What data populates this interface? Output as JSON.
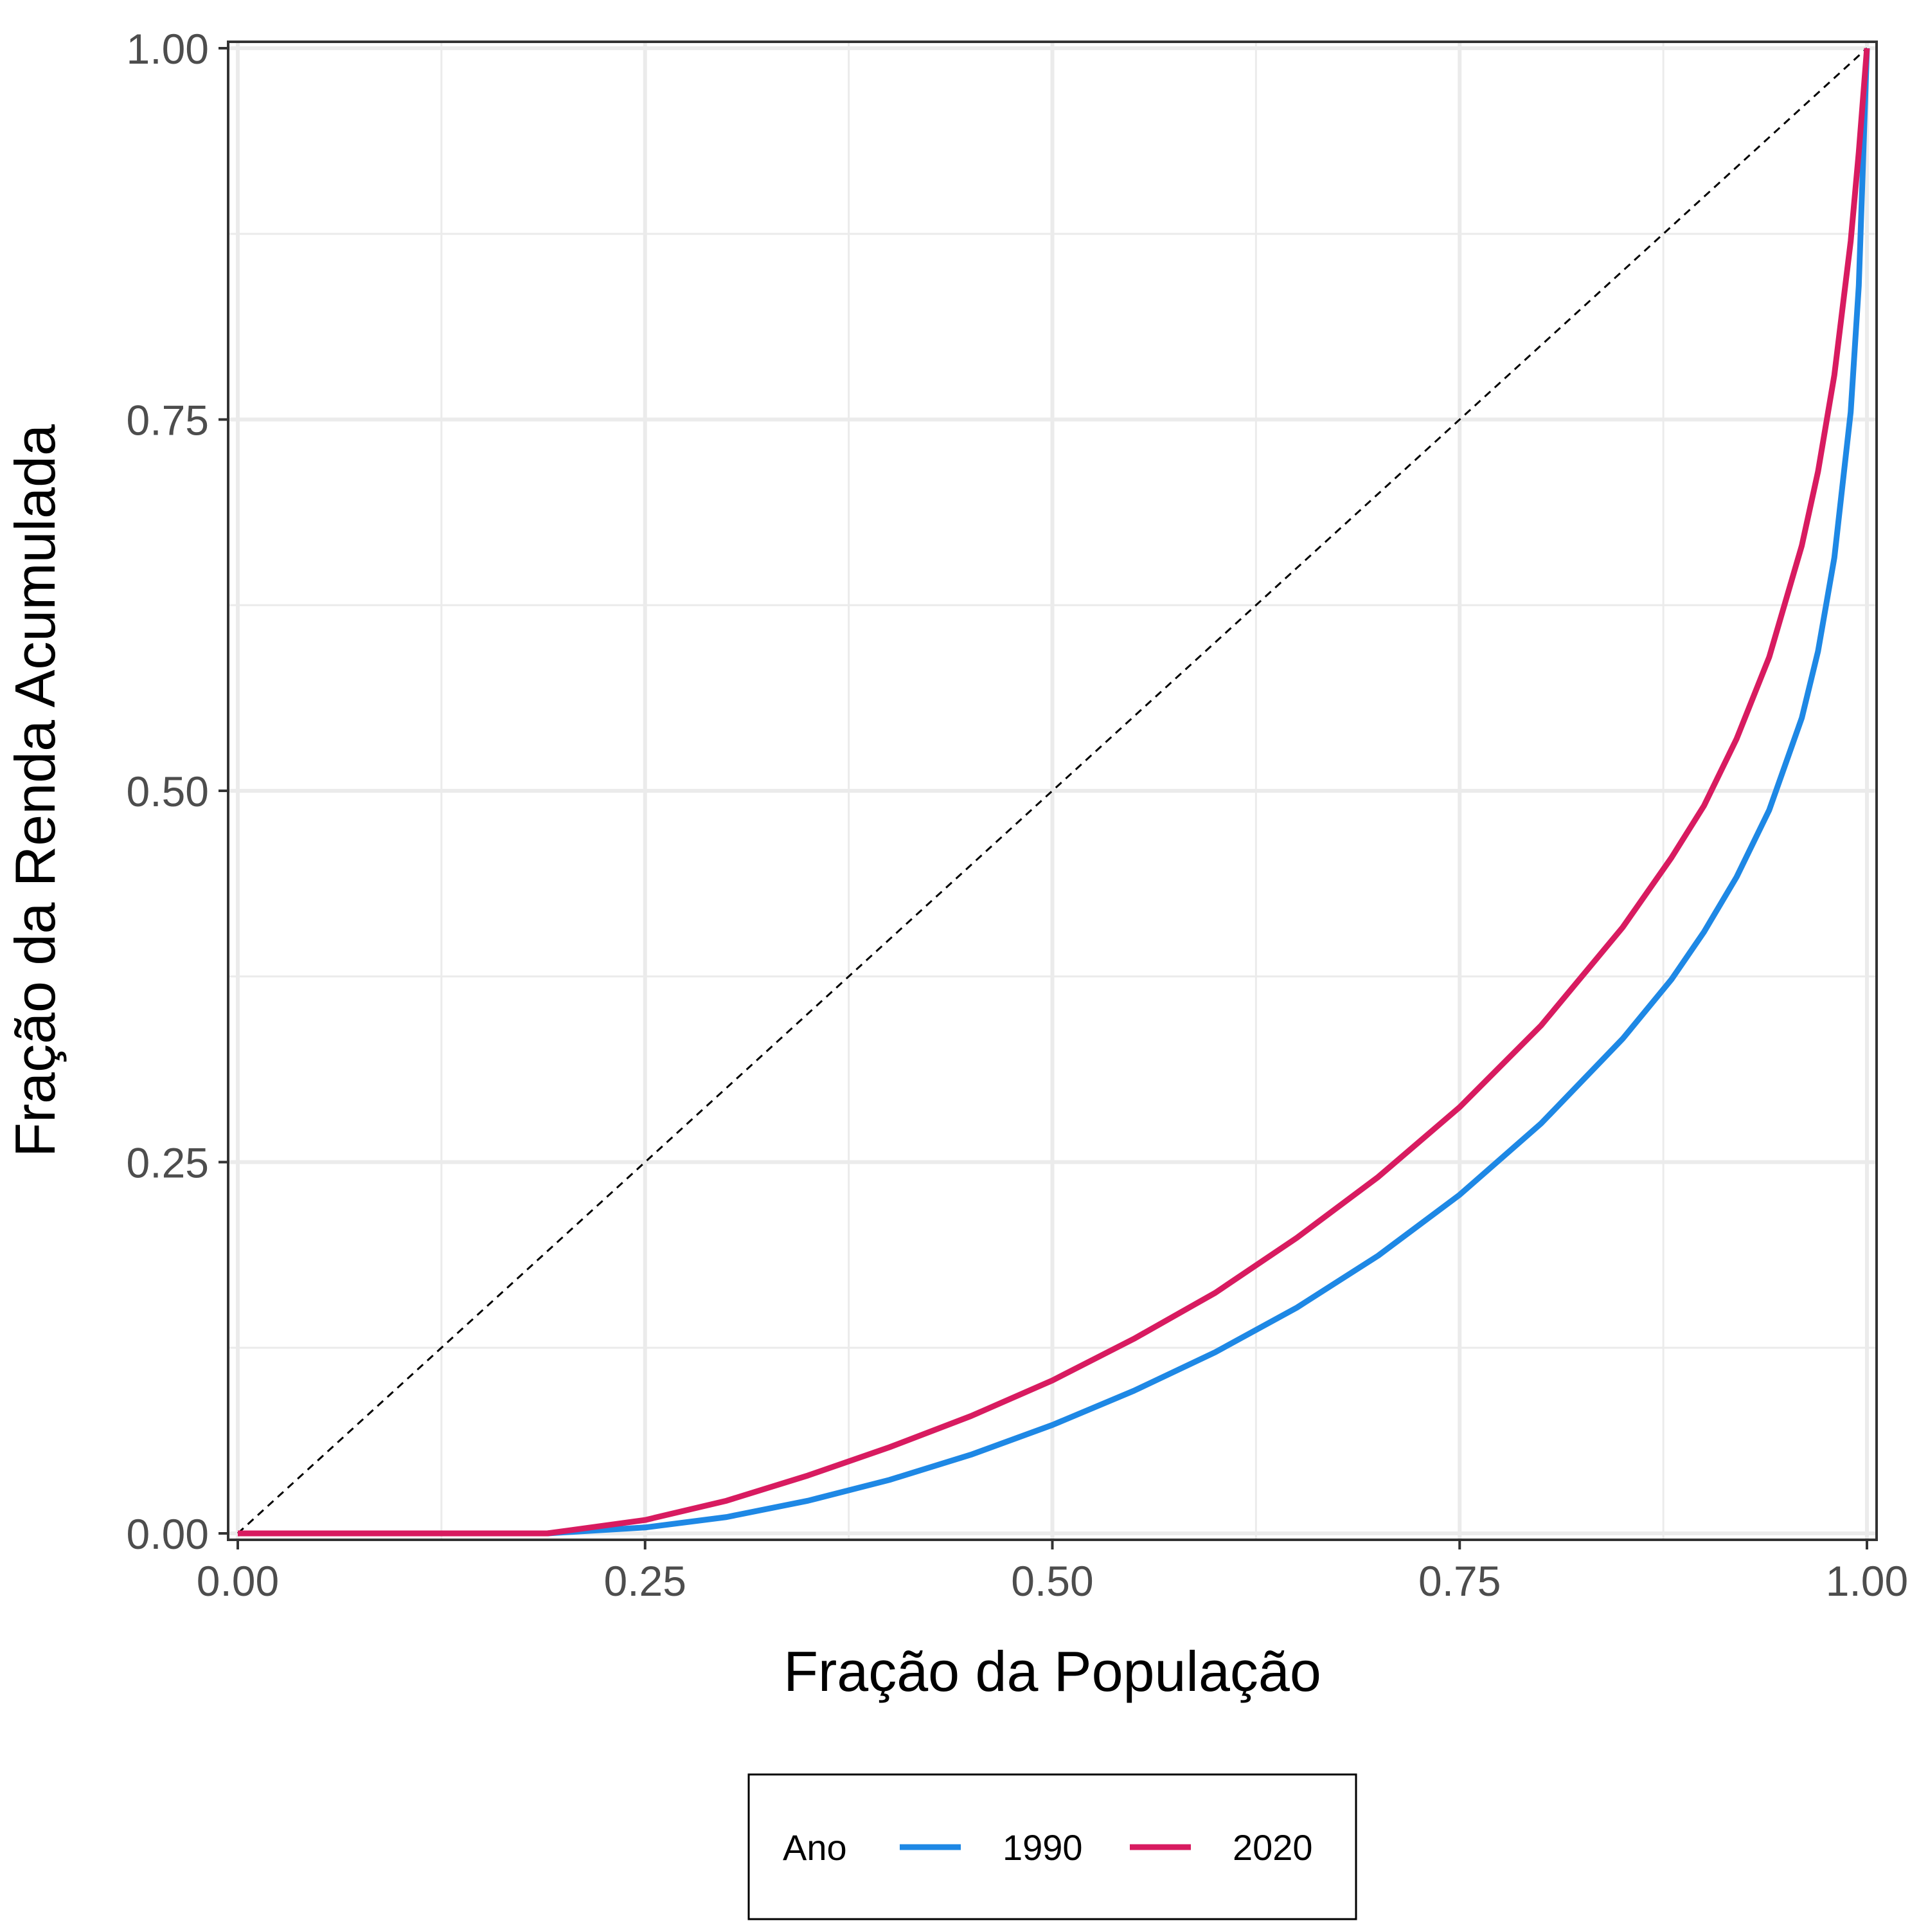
{
  "chart_data": {
    "type": "line",
    "xlabel": "Fração da População",
    "ylabel": "Fração da Renda Acumulada",
    "xlim": [
      0,
      1
    ],
    "ylim": [
      0,
      1
    ],
    "x_ticks": [
      "0.00",
      "0.25",
      "0.50",
      "0.75",
      "1.00"
    ],
    "y_ticks": [
      "0.00",
      "0.25",
      "0.50",
      "0.75",
      "1.00"
    ],
    "grid": true,
    "reference_line": {
      "style": "dashed",
      "color": "#000000",
      "from": [
        0,
        0
      ],
      "to": [
        1,
        1
      ]
    },
    "legend": {
      "title": "Ano",
      "position": "bottom",
      "entries": [
        "1990",
        "2020"
      ]
    },
    "series": [
      {
        "name": "1990",
        "color": "#1E88E5",
        "x": [
          0.0,
          0.1,
          0.19,
          0.25,
          0.3,
          0.35,
          0.4,
          0.45,
          0.5,
          0.55,
          0.6,
          0.65,
          0.7,
          0.75,
          0.8,
          0.85,
          0.88,
          0.9,
          0.92,
          0.94,
          0.96,
          0.97,
          0.98,
          0.99,
          0.995,
          1.0
        ],
        "y": [
          0.0,
          0.0,
          0.0,
          0.004,
          0.011,
          0.022,
          0.036,
          0.053,
          0.073,
          0.096,
          0.122,
          0.152,
          0.187,
          0.228,
          0.276,
          0.333,
          0.373,
          0.405,
          0.442,
          0.487,
          0.549,
          0.594,
          0.657,
          0.755,
          0.84,
          1.0
        ]
      },
      {
        "name": "2020",
        "color": "#D81B60",
        "x": [
          0.0,
          0.1,
          0.19,
          0.25,
          0.3,
          0.35,
          0.4,
          0.45,
          0.5,
          0.55,
          0.6,
          0.65,
          0.7,
          0.75,
          0.8,
          0.85,
          0.88,
          0.9,
          0.92,
          0.94,
          0.96,
          0.97,
          0.98,
          0.99,
          0.995,
          1.0
        ],
        "y": [
          0.0,
          0.0,
          0.0,
          0.009,
          0.022,
          0.039,
          0.058,
          0.079,
          0.103,
          0.131,
          0.162,
          0.199,
          0.24,
          0.287,
          0.342,
          0.408,
          0.455,
          0.49,
          0.535,
          0.59,
          0.665,
          0.715,
          0.78,
          0.87,
          0.93,
          1.0
        ]
      }
    ]
  }
}
